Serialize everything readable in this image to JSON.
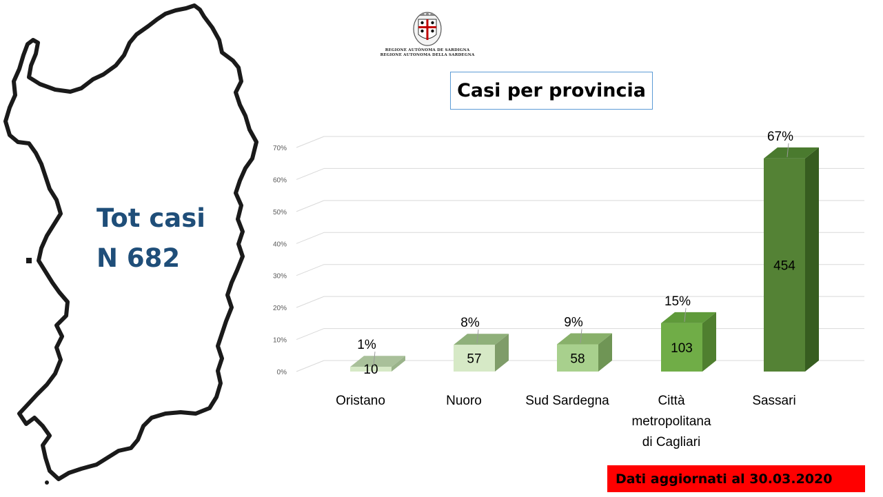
{
  "left_panel": {
    "total_label": "Tot casi",
    "total_value": "N 682"
  },
  "logo": {
    "line1": "REGIONE AUTÒNOMA DE SARDIGNA",
    "line2": "REGIONE AUTONOMA DELLA SARDEGNA"
  },
  "chart_data": {
    "type": "bar",
    "title": "Casi per provincia",
    "categories": [
      "Oristano",
      "Nuoro",
      "Sud Sardegna",
      "Città metropolitana di Cagliari",
      "Sassari"
    ],
    "category_lines": [
      [
        "Oristano"
      ],
      [
        "Nuoro"
      ],
      [
        "Sud Sardegna"
      ],
      [
        "Città",
        "metropolitana",
        "di Cagliari"
      ],
      [
        "Sassari"
      ]
    ],
    "values": [
      10,
      57,
      58,
      103,
      454
    ],
    "percent_labels": [
      "1%",
      "8%",
      "9%",
      "15%",
      "67%"
    ],
    "y_ticks": [
      "0%",
      "10%",
      "20%",
      "30%",
      "40%",
      "50%",
      "60%",
      "70%"
    ],
    "ylim": [
      0,
      0.7
    ],
    "total": 682,
    "colors": {
      "low": "#d6e9c6",
      "mid": "#a8d08d",
      "high": "#70ad47",
      "top": "#548235"
    }
  },
  "footer": {
    "note": "Dati aggiornati al 30.03.2020",
    "color": "#ff0000"
  }
}
